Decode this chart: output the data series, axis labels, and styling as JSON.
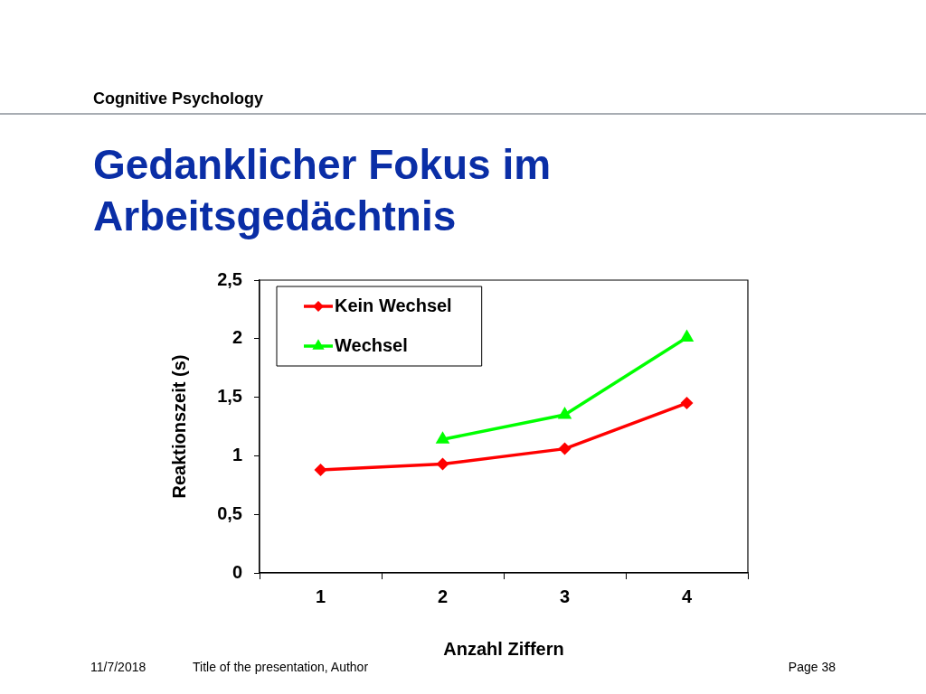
{
  "chart_data": {
    "type": "line",
    "title": "Gedanklicher Fokus im Arbeitsgedächtnis",
    "xlabel": "Anzahl Ziffern",
    "ylabel": "Reaktionszeit (s)",
    "categories": [
      "1",
      "2",
      "3",
      "4"
    ],
    "series": [
      {
        "name": "Kein Wechsel",
        "color": "#ff0000",
        "marker": "diamond",
        "values": [
          0.88,
          0.93,
          1.06,
          1.45
        ]
      },
      {
        "name": "Wechsel",
        "color": "#00ff00",
        "marker": "triangle",
        "values": [
          null,
          1.14,
          1.35,
          2.01
        ]
      }
    ],
    "ylim": [
      0,
      2.5
    ],
    "yticks": [
      0,
      {
        "value": 0.5,
        "label": "0,5"
      },
      1,
      {
        "value": 1.5,
        "label": "1,5"
      },
      2,
      {
        "value": 2.5,
        "label": "2,5"
      }
    ],
    "legend": "top left",
    "line_style": "solid",
    "annotations": [
      "Cognitive Psychology",
      "11/7/2018",
      "Title of the presentation, Author",
      "Page 38"
    ]
  }
}
